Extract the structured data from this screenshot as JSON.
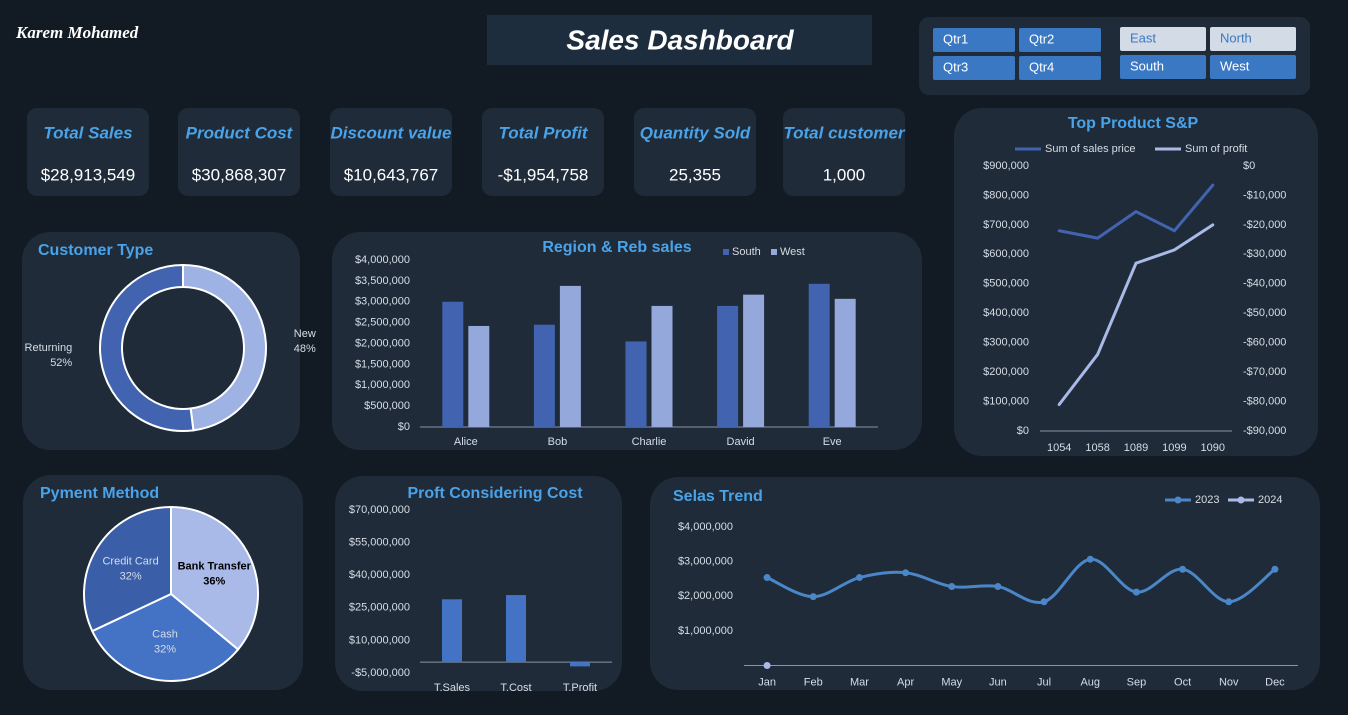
{
  "header": {
    "author": "Karem Mohamed",
    "title": "Sales Dashboard"
  },
  "slicers": [
    [
      {
        "label": "Qtr1",
        "selected": true
      },
      {
        "label": "Qtr2",
        "selected": true
      },
      {
        "label": "Qtr3",
        "selected": true
      },
      {
        "label": "Qtr4",
        "selected": true
      }
    ],
    [
      {
        "label": "East",
        "selected": false
      },
      {
        "label": "North",
        "selected": false
      },
      {
        "label": "South",
        "selected": true
      },
      {
        "label": "West",
        "selected": true
      }
    ]
  ],
  "kpis": [
    {
      "label": "Total Sales",
      "value": "$28,913,549"
    },
    {
      "label": "Product Cost",
      "value": "$30,868,307"
    },
    {
      "label": "Discount value",
      "value": "$10,643,767"
    },
    {
      "label": "Total Profit",
      "value": "-$1,954,758"
    },
    {
      "label": "Quantity Sold",
      "value": "25,355"
    },
    {
      "label": "Total customer",
      "value": "1,000"
    }
  ],
  "chart_data": [
    {
      "type": "doughnut",
      "title": "Customer Type",
      "categories": [
        "New",
        "Returning"
      ],
      "values": [
        48,
        52
      ],
      "value_labels": [
        "48%",
        "52%"
      ],
      "colors": [
        "#9fb2e4",
        "#4264b0"
      ]
    },
    {
      "type": "bar",
      "title": "Region & Reb sales",
      "categories": [
        "Alice",
        "Bob",
        "Charlie",
        "David",
        "Eve"
      ],
      "series": [
        {
          "name": "South",
          "color": "#4264b0",
          "values": [
            3000000,
            2450000,
            2050000,
            2900000,
            3430000
          ]
        },
        {
          "name": "West",
          "color": "#94a8dc",
          "values": [
            2420000,
            3380000,
            2900000,
            3170000,
            3070000
          ]
        }
      ],
      "ylim": [
        0,
        4000000
      ],
      "yticks": [
        {
          "value": 0,
          "label": "$0"
        },
        {
          "value": 500000,
          "label": "$500,000"
        },
        {
          "value": 1000000,
          "label": "$1,000,000"
        },
        {
          "value": 1500000,
          "label": "$1,500,000"
        },
        {
          "value": 2000000,
          "label": "$2,000,000"
        },
        {
          "value": 2500000,
          "label": "$2,500,000"
        },
        {
          "value": 3000000,
          "label": "$3,000,000"
        },
        {
          "value": 3500000,
          "label": "$3,500,000"
        },
        {
          "value": 4000000,
          "label": "$4,000,000"
        }
      ],
      "legend": "top"
    },
    {
      "type": "line",
      "title": "Top Product  S&P",
      "categories": [
        "1054",
        "1058",
        "1089",
        "1099",
        "1090"
      ],
      "series": [
        {
          "name": "Sum of sales price",
          "color": "#4264b0",
          "values": [
            680000,
            655000,
            745000,
            680000,
            835000
          ]
        },
        {
          "name": "Sum of profit",
          "color": "#a9b9e8",
          "axis": "y2",
          "values": [
            -81000,
            -64000,
            -33000,
            -28500,
            -20000
          ]
        }
      ],
      "ylim": [
        0,
        900000
      ],
      "yticks": [
        {
          "value": 0,
          "label": "$0"
        },
        {
          "value": 100000,
          "label": "$100,000"
        },
        {
          "value": 200000,
          "label": "$200,000"
        },
        {
          "value": 300000,
          "label": "$300,000"
        },
        {
          "value": 400000,
          "label": "$400,000"
        },
        {
          "value": 500000,
          "label": "$500,000"
        },
        {
          "value": 600000,
          "label": "$600,000"
        },
        {
          "value": 700000,
          "label": "$700,000"
        },
        {
          "value": 800000,
          "label": "$800,000"
        },
        {
          "value": 900000,
          "label": "$900,000"
        }
      ],
      "y2lim": [
        -90000,
        0
      ],
      "y2ticks": [
        {
          "value": 0,
          "label": "$0"
        },
        {
          "value": -10000,
          "label": "-$10,000"
        },
        {
          "value": -20000,
          "label": "-$20,000"
        },
        {
          "value": -30000,
          "label": "-$30,000"
        },
        {
          "value": -40000,
          "label": "-$40,000"
        },
        {
          "value": -50000,
          "label": "-$50,000"
        },
        {
          "value": -60000,
          "label": "-$60,000"
        },
        {
          "value": -70000,
          "label": "-$70,000"
        },
        {
          "value": -80000,
          "label": "-$80,000"
        },
        {
          "value": -90000,
          "label": "-$90,000"
        }
      ],
      "legend": "top"
    },
    {
      "type": "pie",
      "title": "Pyment Method",
      "categories": [
        "Bank Transfer",
        "Cash",
        "Credit Card"
      ],
      "values": [
        36,
        32,
        32
      ],
      "value_labels": [
        "36%",
        "32%",
        "32%"
      ],
      "colors": [
        "#a9b9e8",
        "#4472c4",
        "#3a5fa8"
      ]
    },
    {
      "type": "bar",
      "title": "Proft Considering Cost",
      "categories": [
        "T.Sales",
        "T.Cost",
        "T.Profit"
      ],
      "values": [
        28913549,
        30868307,
        -1954758
      ],
      "color": "#4472c4",
      "ylim": [
        -5000000,
        70000000
      ],
      "yticks": [
        {
          "value": -5000000,
          "label": "-$5,000,000"
        },
        {
          "value": 10000000,
          "label": "$10,000,000"
        },
        {
          "value": 25000000,
          "label": "$25,000,000"
        },
        {
          "value": 40000000,
          "label": "$40,000,000"
        },
        {
          "value": 55000000,
          "label": "$55,000,000"
        },
        {
          "value": 70000000,
          "label": "$70,000,000"
        }
      ]
    },
    {
      "type": "line",
      "title": "Selas Trend",
      "categories": [
        "Jan",
        "Feb",
        "Mar",
        "Apr",
        "May",
        "Jun",
        "Jul",
        "Aug",
        "Sep",
        "Oct",
        "Nov",
        "Dec"
      ],
      "series": [
        {
          "name": "2023",
          "color": "#4a86c8",
          "values": [
            2540000,
            1990000,
            2540000,
            2680000,
            2280000,
            2280000,
            1840000,
            3070000,
            2120000,
            2780000,
            1840000,
            2780000
          ]
        },
        {
          "name": "2024",
          "color": "#a9b9e8",
          "values": [
            0,
            null,
            null,
            null,
            null,
            null,
            null,
            null,
            null,
            null,
            null,
            null
          ]
        }
      ],
      "ylim": [
        0,
        4000000
      ],
      "yticks": [
        {
          "value": 1000000,
          "label": "$1,000,000"
        },
        {
          "value": 2000000,
          "label": "$2,000,000"
        },
        {
          "value": 3000000,
          "label": "$3,000,000"
        },
        {
          "value": 4000000,
          "label": "$4,000,000"
        }
      ],
      "markers": true,
      "smooth": true,
      "legend": "top-right"
    }
  ]
}
